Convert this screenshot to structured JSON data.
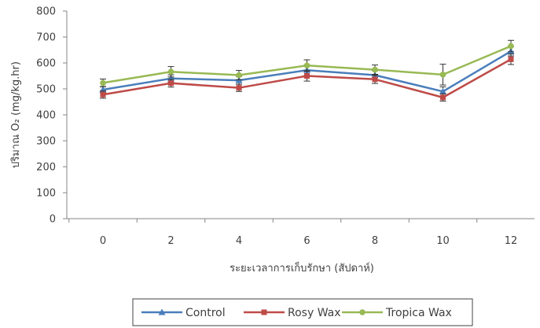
{
  "chart_data": {
    "type": "line",
    "title": "",
    "xlabel": "ระยะเวลาการเก็บรักษา (สัปดาห์)",
    "ylabel": "ปริมาณ O₂ (mg/kg.hr)",
    "x": [
      0,
      2,
      4,
      6,
      8,
      10,
      12
    ],
    "x_tick_labels": [
      "0",
      "2",
      "4",
      "6",
      "8",
      "10",
      "12"
    ],
    "ylim": [
      0,
      800
    ],
    "y_tick_labels": [
      "0",
      "100",
      "200",
      "300",
      "400",
      "500",
      "600",
      "700",
      "800"
    ],
    "grid": false,
    "legend_position": "bottom",
    "series": [
      {
        "name": "Control",
        "color": "#4a7ebb",
        "marker": "triangle",
        "values": [
          497,
          540,
          533,
          572,
          553,
          490,
          645
        ],
        "errors": [
          12,
          14,
          15,
          20,
          17,
          18,
          18
        ]
      },
      {
        "name": "Rosy Wax",
        "color": "#be4b48",
        "marker": "square",
        "values": [
          478,
          522,
          504,
          550,
          537,
          467,
          614
        ],
        "errors": [
          14,
          15,
          14,
          20,
          16,
          14,
          20
        ]
      },
      {
        "name": "Tropica Wax",
        "color": "#98b954",
        "marker": "circle",
        "values": [
          523,
          566,
          553,
          590,
          574,
          555,
          665
        ],
        "errors": [
          15,
          20,
          18,
          22,
          18,
          40,
          22
        ]
      }
    ]
  }
}
